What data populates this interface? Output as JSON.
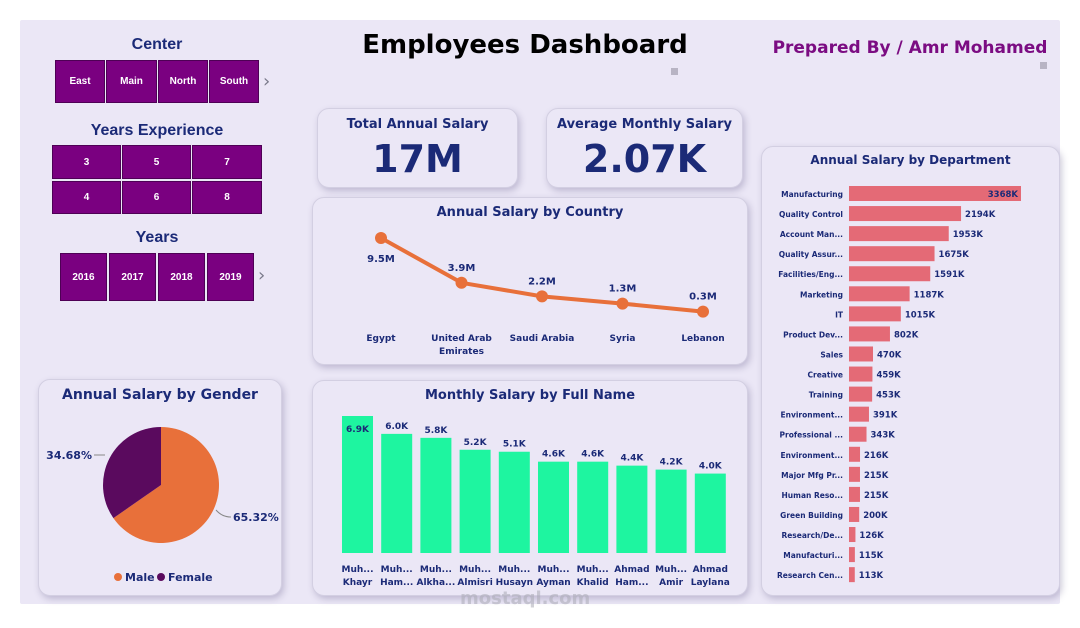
{
  "header": {
    "title": "Employees Dashboard",
    "prepared_by": "Prepared By / Amr Mohamed"
  },
  "slicers": {
    "center": {
      "title": "Center",
      "options": [
        "East",
        "Main",
        "North",
        "South"
      ]
    },
    "experience": {
      "title": "Years Experience",
      "options": [
        "3",
        "5",
        "7",
        "4",
        "6",
        "8"
      ]
    },
    "years": {
      "title": "Years",
      "options": [
        "2016",
        "2017",
        "2018",
        "2019"
      ]
    }
  },
  "kpis": {
    "total_annual": {
      "label": "Total Annual Salary",
      "value": "17M"
    },
    "avg_monthly": {
      "label": "Average Monthly Salary",
      "value": "2.07K"
    }
  },
  "colors": {
    "purple": "#7a0080",
    "orange": "#e8703a",
    "green": "#1ef5a0",
    "bar_red": "#e46a76",
    "dark_purple": "#5a0a5e",
    "navy": "#1b2a77"
  },
  "watermark": "mostaql.com",
  "chart_data": [
    {
      "id": "country",
      "type": "line",
      "title": "Annual Salary by Country",
      "categories": [
        "Egypt",
        "United Arab Emirates",
        "Saudi Arabia",
        "Syria",
        "Lebanon"
      ],
      "category_lines": [
        [
          "Egypt"
        ],
        [
          "United Arab",
          "Emirates"
        ],
        [
          "Saudi Arabia"
        ],
        [
          "Syria"
        ],
        [
          "Lebanon"
        ]
      ],
      "values": [
        9.5,
        3.9,
        2.2,
        1.3,
        0.3
      ],
      "labels": [
        "9.5M",
        "3.9M",
        "2.2M",
        "1.3M",
        "0.3M"
      ],
      "unit": "M"
    },
    {
      "id": "gender",
      "type": "pie",
      "title": "Annual Salary by Gender",
      "categories": [
        "Male",
        "Female"
      ],
      "values": [
        65.32,
        34.68
      ],
      "labels": [
        "65.32%",
        "34.68%"
      ],
      "colors": [
        "#e8703a",
        "#5a0a5e"
      ],
      "legend": "bottom"
    },
    {
      "id": "fullname",
      "type": "bar",
      "title": "Monthly Salary by Full Name",
      "categories": [
        [
          "Muh...",
          "Khayr"
        ],
        [
          "Muh...",
          "Ham..."
        ],
        [
          "Muh...",
          "Alkha..."
        ],
        [
          "Muh...",
          "Almisri"
        ],
        [
          "Muh...",
          "Husayn"
        ],
        [
          "Muh...",
          "Ayman"
        ],
        [
          "Muh...",
          "Khalid"
        ],
        [
          "Ahmad",
          "Ham..."
        ],
        [
          "Muh...",
          "Amir"
        ],
        [
          "Ahmad",
          "Laylana"
        ]
      ],
      "values": [
        6.9,
        6.0,
        5.8,
        5.2,
        5.1,
        4.6,
        4.6,
        4.4,
        4.2,
        4.0
      ],
      "labels": [
        "6.9K",
        "6.0K",
        "5.8K",
        "5.2K",
        "5.1K",
        "4.6K",
        "4.6K",
        "4.4K",
        "4.2K",
        "4.0K"
      ],
      "unit": "K"
    },
    {
      "id": "department",
      "type": "bar",
      "orientation": "horizontal",
      "title": "Annual Salary by Department",
      "categories": [
        "Manufacturing",
        "Quality Control",
        "Account Man...",
        "Quality Assur...",
        "Facilities/Eng...",
        "Marketing",
        "IT",
        "Product Dev...",
        "Sales",
        "Creative",
        "Training",
        "Environment...",
        "Professional ...",
        "Environment...",
        "Major Mfg Pr...",
        "Human Reso...",
        "Green Building",
        "Research/De...",
        "Manufacturi...",
        "Research Cen..."
      ],
      "values": [
        3368,
        2194,
        1953,
        1675,
        1591,
        1187,
        1015,
        802,
        470,
        459,
        453,
        391,
        343,
        216,
        215,
        215,
        200,
        126,
        115,
        113
      ],
      "labels": [
        "3368K",
        "2194K",
        "1953K",
        "1675K",
        "1591K",
        "1187K",
        "1015K",
        "802K",
        "470K",
        "459K",
        "453K",
        "391K",
        "343K",
        "216K",
        "215K",
        "215K",
        "200K",
        "126K",
        "115K",
        "113K"
      ],
      "unit": "K"
    }
  ]
}
